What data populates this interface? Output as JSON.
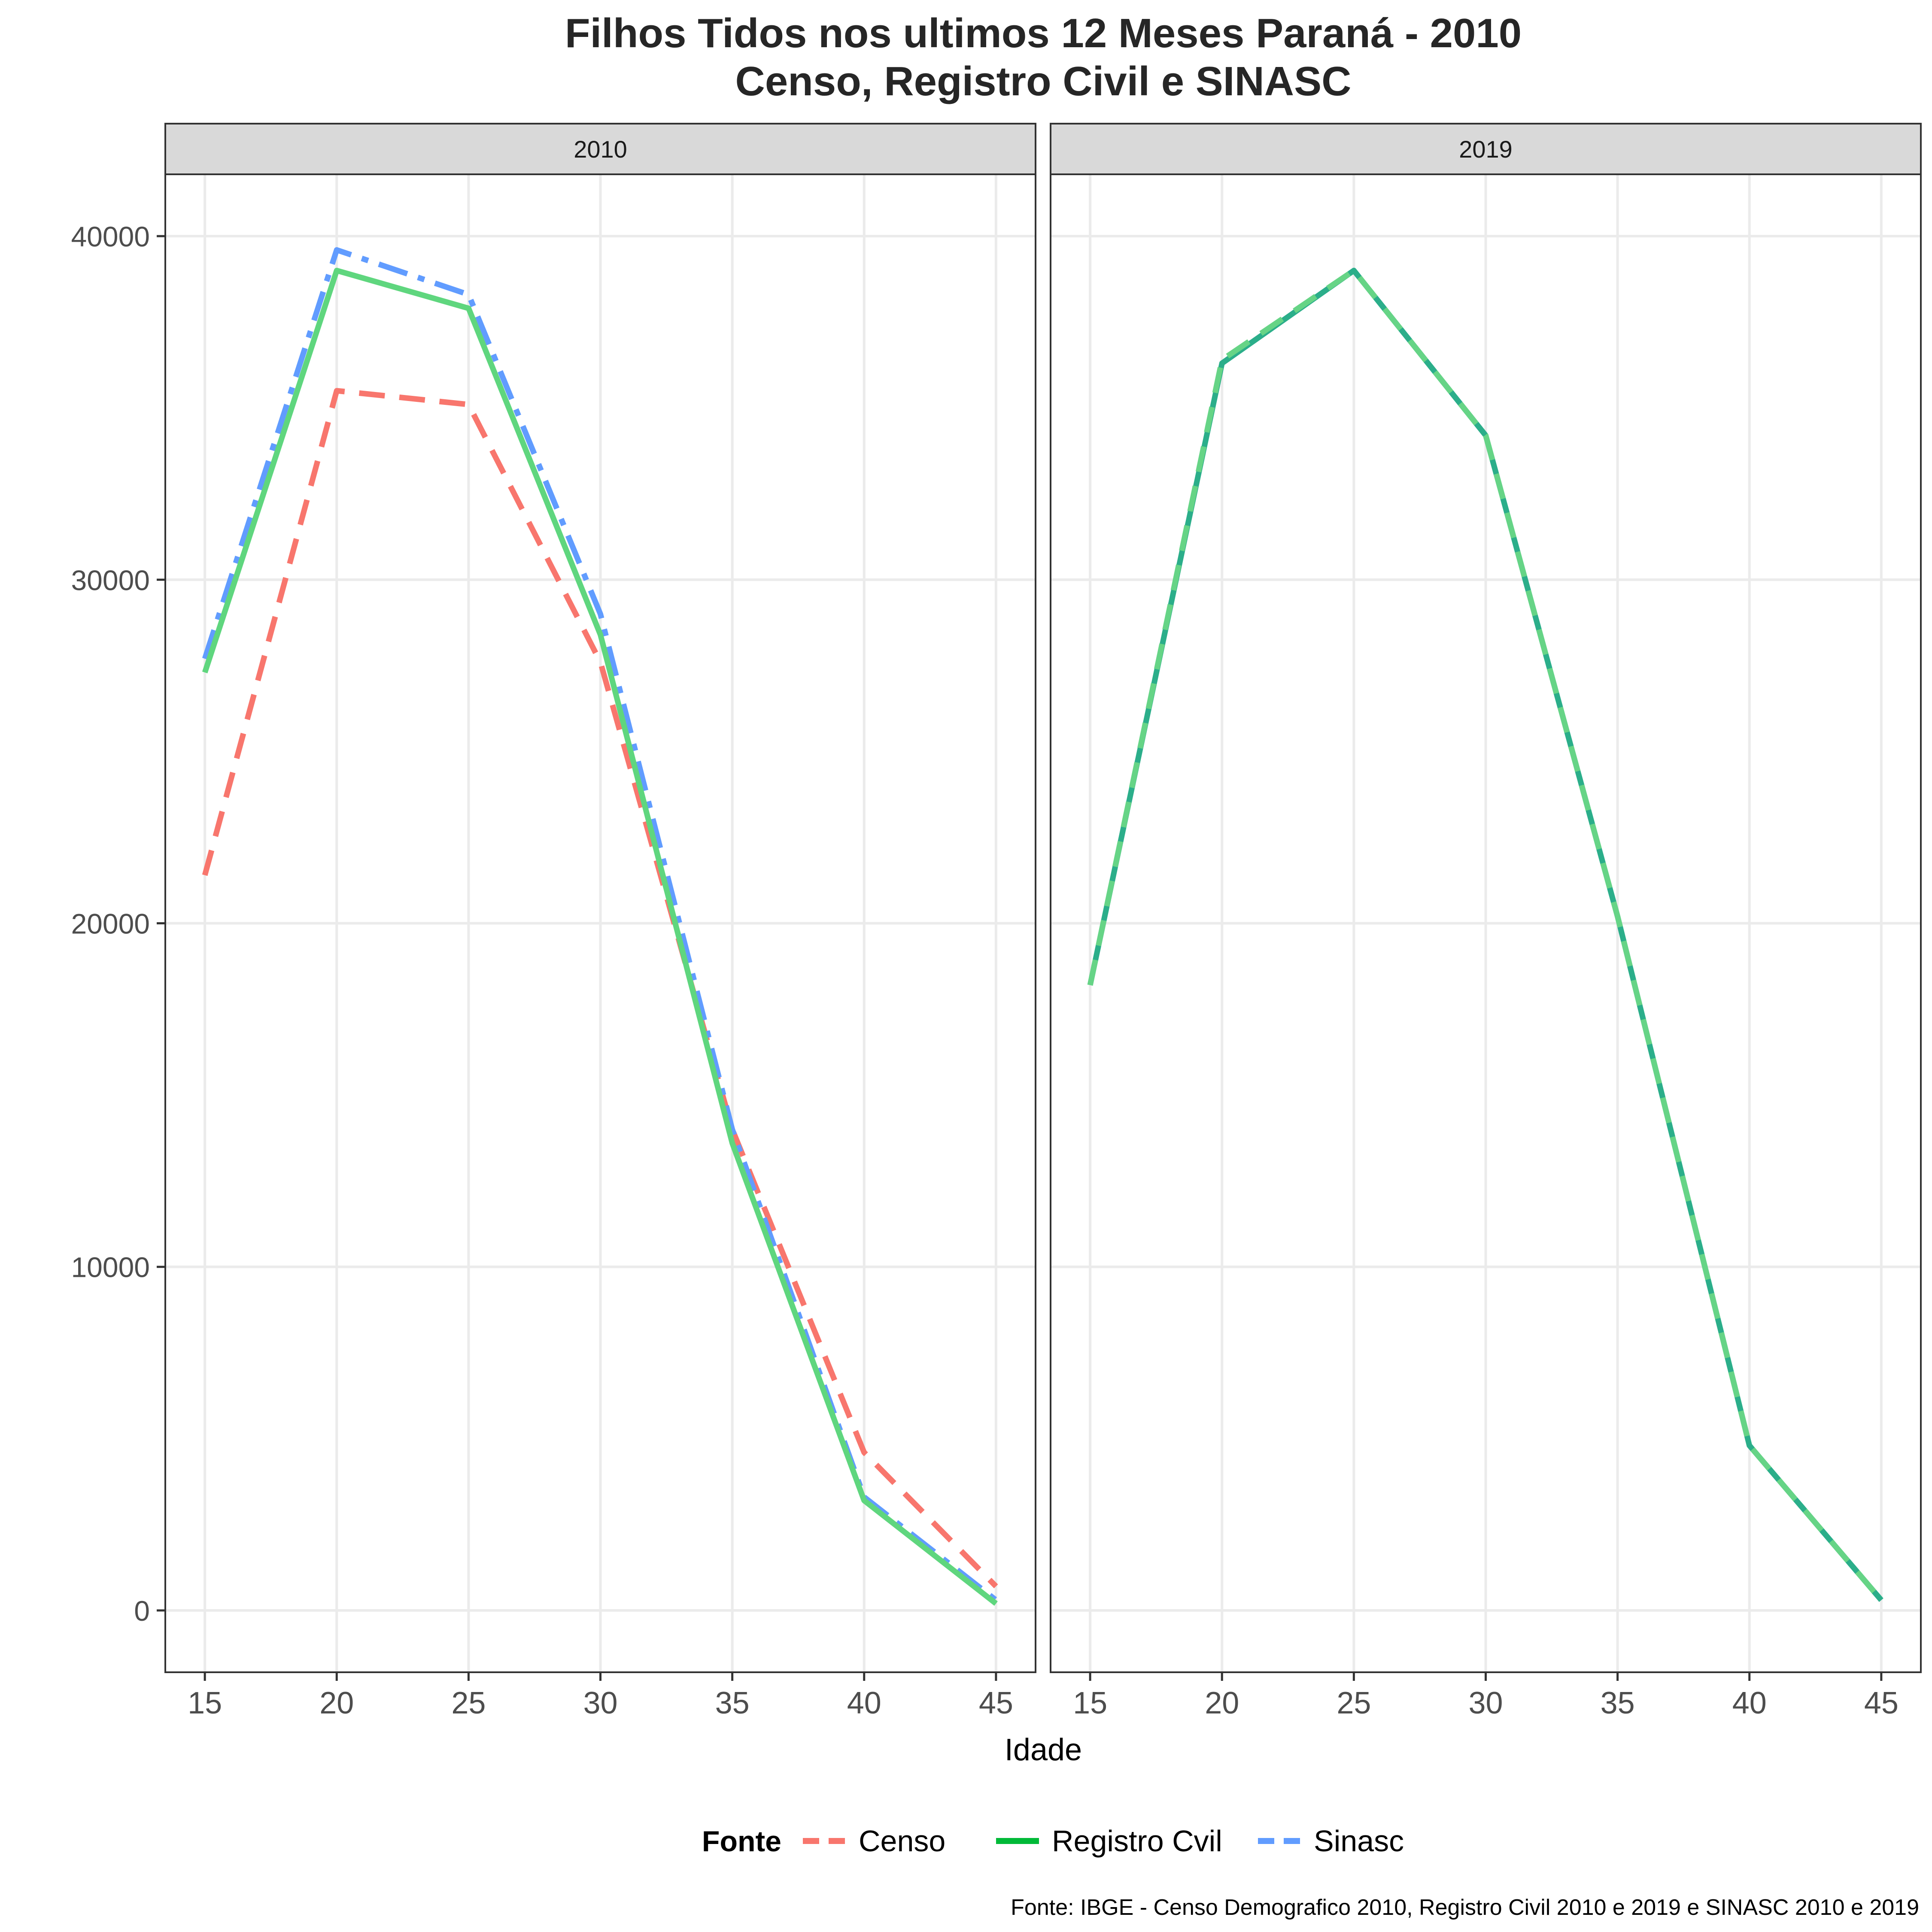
{
  "chart_data": {
    "type": "line",
    "title_line1": "Filhos Tidos nos ultimos 12 Meses Paraná - 2010",
    "title_line2": "Censo, Registro Civil e SINASC",
    "xlabel": "Idade",
    "ylabel": "",
    "caption": "Fonte: IBGE - Censo Demografico 2010, Registro Civil 2010 e 2019 e SINASC 2010 e 2019",
    "legend_title": "Fonte",
    "legend_position": "bottom",
    "grid": true,
    "x_ticks": [
      15,
      20,
      25,
      30,
      35,
      40,
      45
    ],
    "x_tick_labels": [
      "15",
      "20",
      "25",
      "30",
      "35",
      "40",
      "45"
    ],
    "y_ticks": [
      0,
      10000,
      20000,
      30000,
      40000
    ],
    "y_tick_labels": [
      "0",
      "10000",
      "20000",
      "30000",
      "40000"
    ],
    "xlim": [
      13.5,
      46.5
    ],
    "ylim": [
      -1800,
      41800
    ],
    "legend": [
      {
        "name": "Censo",
        "color": "#F8766D",
        "dash": "dashed"
      },
      {
        "name": "Registro Cvil",
        "color": "#00BA38",
        "dash": "solid"
      },
      {
        "name": "Sinasc",
        "color": "#619CFF",
        "dash": "dashed"
      }
    ],
    "panels": [
      {
        "label": "2010",
        "series": [
          {
            "name": "Censo",
            "color": "#F8766D",
            "dash": "dashed",
            "x": [
              15,
              20,
              25,
              30,
              35,
              40,
              45
            ],
            "y": [
              21400,
              35500,
              35100,
              27600,
              14000,
              4600,
              700
            ]
          },
          {
            "name": "Sinasc",
            "color": "#619CFF",
            "dash": "dashdot",
            "x": [
              15,
              20,
              25,
              30,
              35,
              40,
              45
            ],
            "y": [
              27700,
              39600,
              38300,
              29000,
              14000,
              3300,
              300
            ]
          },
          {
            "name": "Registro Cvil",
            "color": "#5FD67E",
            "dash": "solid",
            "x": [
              15,
              20,
              25,
              30,
              35,
              40,
              45
            ],
            "y": [
              27300,
              39000,
              37900,
              28400,
              13600,
              3200,
              200
            ]
          }
        ]
      },
      {
        "label": "2019",
        "series": [
          {
            "name": "Sinasc",
            "color": "#2BAE8A",
            "dash": "solid",
            "x": [
              15,
              20,
              25,
              30,
              35,
              40,
              45
            ],
            "y": [
              18200,
              36300,
              39000,
              34200,
              20200,
              4800,
              300
            ]
          },
          {
            "name": "Registro Cvil",
            "color": "#66D486",
            "dash": "dashed",
            "x": [
              15,
              20,
              25,
              30,
              35,
              40,
              45
            ],
            "y": [
              18200,
              36400,
              39000,
              34200,
              20200,
              4800,
              300
            ]
          }
        ]
      }
    ]
  }
}
